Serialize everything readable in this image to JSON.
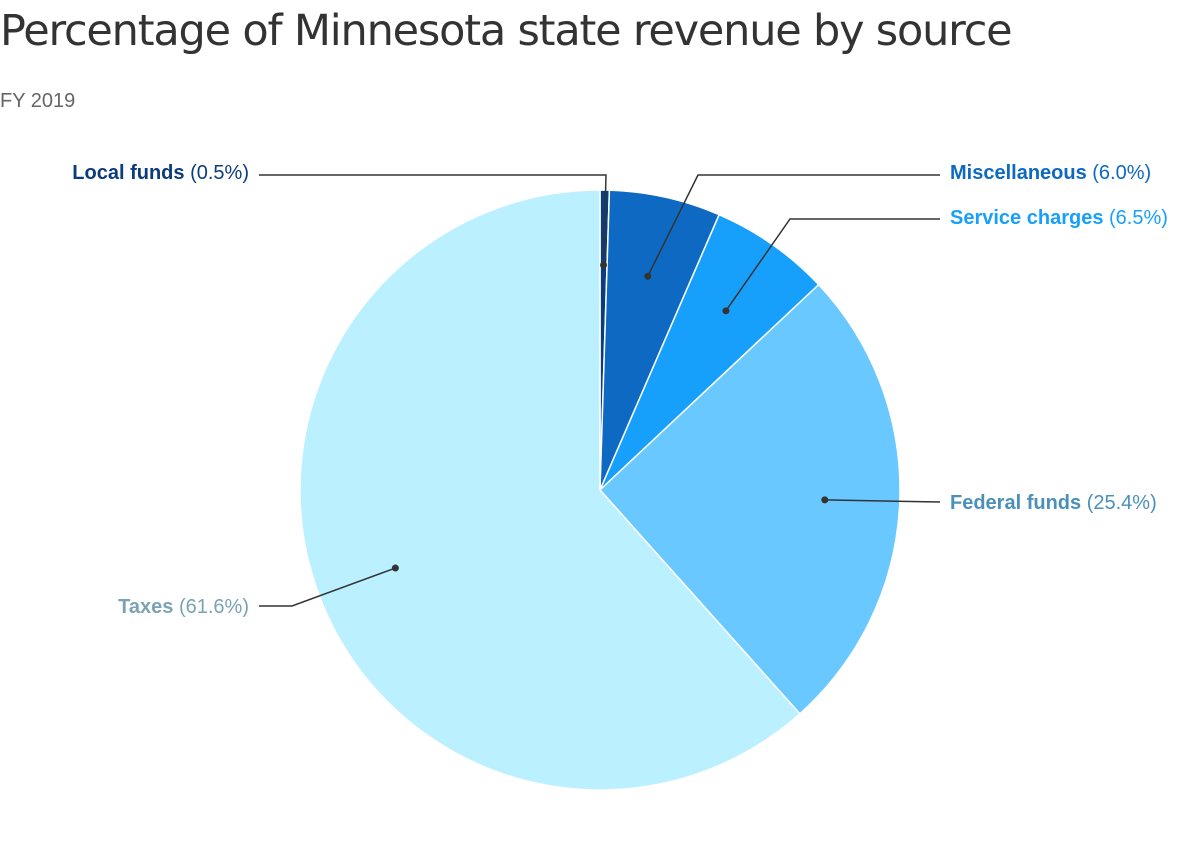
{
  "chart_data": {
    "type": "pie",
    "title": "Percentage of Minnesota state revenue by source",
    "subtitle": "FY 2019",
    "slices": [
      {
        "name": "Local funds",
        "value": 0.5,
        "value_label": "(0.5%)",
        "color": "#0b3c7d",
        "label_color": "#0b3c7d"
      },
      {
        "name": "Miscellaneous",
        "value": 6.0,
        "value_label": "(6.0%)",
        "color": "#0e69c2",
        "label_color": "#0e69c2"
      },
      {
        "name": "Service charges",
        "value": 6.5,
        "value_label": "(6.5%)",
        "color": "#17a0fb",
        "label_color": "#17a0fb"
      },
      {
        "name": "Federal funds",
        "value": 25.4,
        "value_label": "(25.4%)",
        "color": "#68c8ff",
        "label_color": "#4a90b8"
      },
      {
        "name": "Taxes",
        "value": 61.6,
        "value_label": "(61.6%)",
        "color": "#baf0ff",
        "label_color": "#7aa3b3"
      }
    ],
    "start_angle_deg": 0,
    "direction": "clockwise",
    "leader_line_color": "#333333"
  }
}
